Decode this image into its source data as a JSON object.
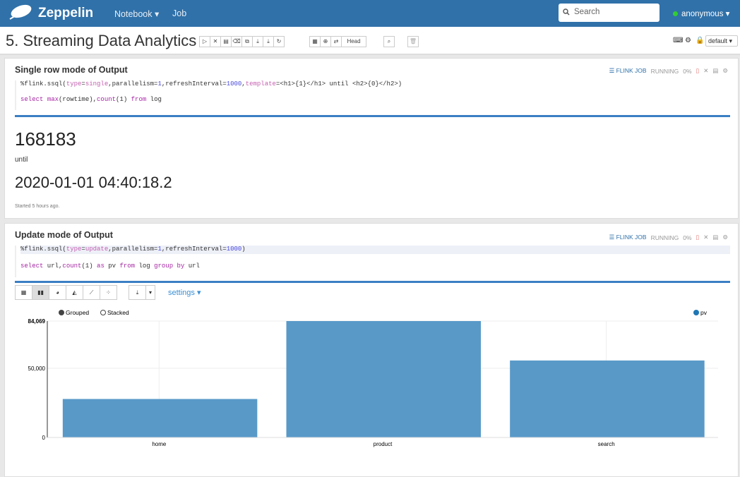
{
  "nav": {
    "brand": "Zeppelin",
    "notebook": "Notebook ▾",
    "job": "Job",
    "search_placeholder": "Search",
    "user": "anonymous ▾"
  },
  "notebook": {
    "title": "5. Streaming Data Analytics",
    "head_label": "Head",
    "interpreter": "default ▾"
  },
  "paragraphs": [
    {
      "title": "Single row mode of Output",
      "job_label": "FLINK JOB",
      "status": "RUNNING",
      "progress": "0%",
      "code_line1": "%flink.ssql(type=single,parallelism=1,refreshInterval=1000,template=<h1>{1}</h1> until <h2>{0}</h2>)",
      "code_line2": "select max(rowtime),count(1) from log",
      "output_count": "168183",
      "output_until": "until",
      "output_time": "2020-01-01 04:40:18.2",
      "footer": "Started 5 hours ago."
    },
    {
      "title": "Update mode of Output",
      "job_label": "FLINK JOB",
      "status": "RUNNING",
      "progress": "0%",
      "code_line1": "%flink.ssql(type=update,parallelism=1,refreshInterval=1000)",
      "code_line2": "select url,count(1) as pv from log group by url",
      "settings": "settings ▾",
      "grouped": "Grouped",
      "stacked": "Stacked"
    }
  ],
  "chart_data": {
    "type": "bar",
    "categories": [
      "home",
      "product",
      "search"
    ],
    "series": [
      {
        "name": "pv",
        "values": [
          27800,
          84069,
          55600
        ]
      }
    ],
    "yticks": [
      "0",
      "50,000",
      "84,069"
    ],
    "ylim": [
      0,
      84069
    ],
    "color": "#5899c8",
    "legend": "top-right",
    "grid": true
  }
}
